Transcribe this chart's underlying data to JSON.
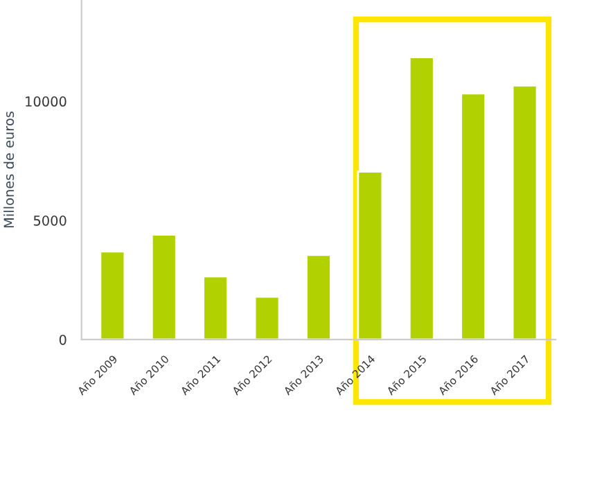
{
  "chart_data": {
    "type": "bar",
    "ylabel": "Millones de euros",
    "categories": [
      "Año 2009",
      "Año 2010",
      "Año 2011",
      "Año 2012",
      "Año 2013",
      "Año 2014",
      "Año 2015",
      "Año 2016",
      "Año 2017"
    ],
    "values": [
      3700,
      4400,
      2650,
      1800,
      3550,
      7050,
      11850,
      10330,
      10660
    ],
    "color": "#b2d100",
    "ylim": [
      0,
      14250
    ],
    "yticks": [
      0,
      5000,
      10000
    ]
  }
}
